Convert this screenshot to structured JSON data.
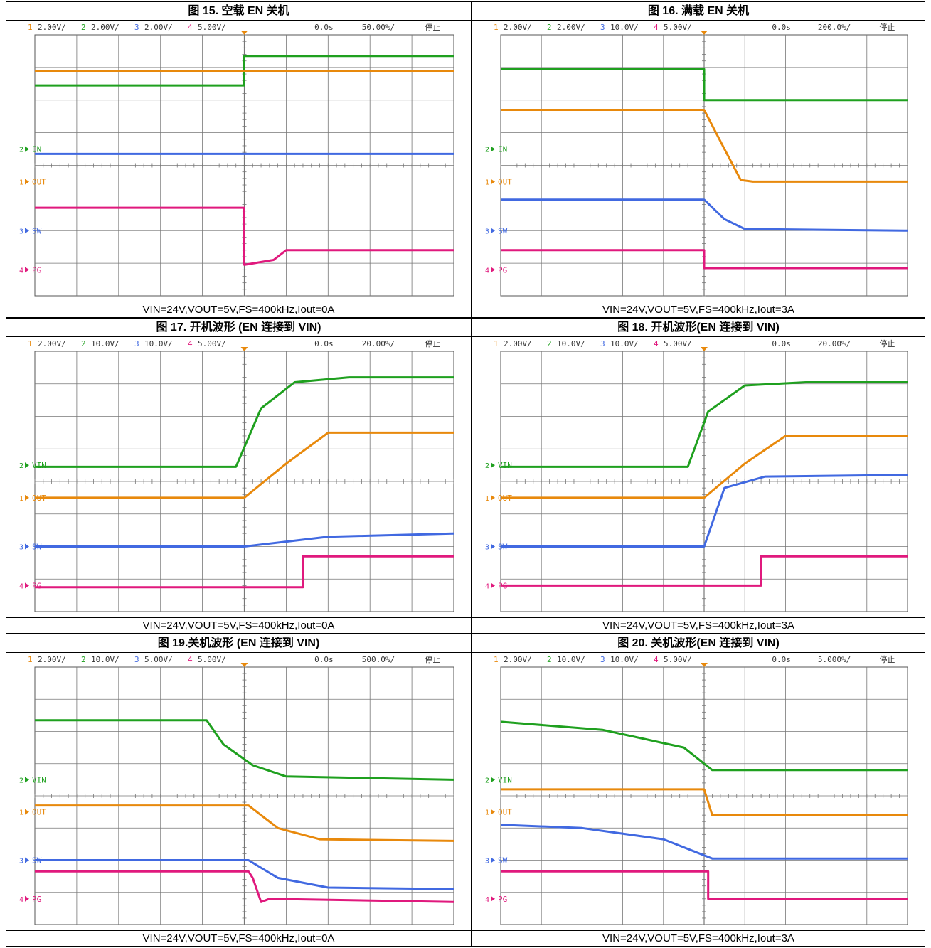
{
  "colors": {
    "ch1": "#E8890C",
    "ch2": "#1FA01F",
    "ch3": "#4169E1",
    "ch4": "#E0197D",
    "sw_fill": "#14214A",
    "trigger": "#E8890C"
  },
  "panels": [
    {
      "title": "图 15. 空载 EN 关机",
      "caption": "VIN=24V,VOUT=5V,FS=400kHz,Iout=0A",
      "header": {
        "ch1": "2.00V/",
        "ch2": "2.00V/",
        "ch3": "2.00V/",
        "ch4": "5.00V/",
        "delay": "0.0s",
        "timebase": "50.00%/",
        "status": "停止"
      },
      "labels": {
        "ch2": "EN",
        "ch1": "OUT",
        "ch3": "SW",
        "ch4": "PG"
      }
    },
    {
      "title": "图 16. 满载 EN 关机",
      "caption": "VIN=24V,VOUT=5V,FS=400kHz,Iout=3A",
      "header": {
        "ch1": "2.00V/",
        "ch2": "2.00V/",
        "ch3": "10.0V/",
        "ch4": "5.00V/",
        "delay": "0.0s",
        "timebase": "200.0%/",
        "status": "停止"
      },
      "labels": {
        "ch2": "EN",
        "ch1": "OUT",
        "ch3": "SW",
        "ch4": "PG"
      }
    },
    {
      "title": "图 17. 开机波形 (EN 连接到 VIN)",
      "caption": "VIN=24V,VOUT=5V,FS=400kHz,Iout=0A",
      "header": {
        "ch1": "2.00V/",
        "ch2": "10.0V/",
        "ch3": "10.0V/",
        "ch4": "5.00V/",
        "delay": "0.0s",
        "timebase": "20.00%/",
        "status": "停止"
      },
      "labels": {
        "ch2": "VIN",
        "ch1": "OUT",
        "ch3": "SW",
        "ch4": "PG"
      }
    },
    {
      "title": "图 18. 开机波形(EN 连接到 VIN)",
      "caption": "VIN=24V,VOUT=5V,FS=400kHz,Iout=3A",
      "header": {
        "ch1": "2.00V/",
        "ch2": "10.0V/",
        "ch3": "10.0V/",
        "ch4": "5.00V/",
        "delay": "0.0s",
        "timebase": "20.00%/",
        "status": "停止"
      },
      "labels": {
        "ch2": "VIN",
        "ch1": "OUT",
        "ch3": "SW",
        "ch4": "PG"
      }
    },
    {
      "title": "图 19.关机波形 (EN 连接到 VIN)",
      "caption": "VIN=24V,VOUT=5V,FS=400kHz,Iout=0A",
      "header": {
        "ch1": "2.00V/",
        "ch2": "10.0V/",
        "ch3": "5.00V/",
        "ch4": "5.00V/",
        "delay": "0.0s",
        "timebase": "500.0%/",
        "status": "停止"
      },
      "labels": {
        "ch2": "VIN",
        "ch1": "OUT",
        "ch3": "SW",
        "ch4": "PG"
      }
    },
    {
      "title": "图 20. 关机波形(EN 连接到 VIN)",
      "caption": "VIN=24V,VOUT=5V,FS=400kHz,Iout=3A",
      "header": {
        "ch1": "2.00V/",
        "ch2": "10.0V/",
        "ch3": "10.0V/",
        "ch4": "5.00V/",
        "delay": "0.0s",
        "timebase": "5.000%/",
        "status": "停止"
      },
      "labels": {
        "ch2": "VIN",
        "ch1": "OUT",
        "ch3": "SW",
        "ch4": "PG"
      }
    }
  ],
  "chart_data": [
    {
      "type": "line",
      "title": "图 15. 空载 EN 关机",
      "x_divisions": 10,
      "y_divisions": 8,
      "series": [
        {
          "name": "EN",
          "points": [
            [
              0,
              1.95
            ],
            [
              5,
              1.95
            ],
            [
              5,
              2.85
            ],
            [
              10,
              2.85
            ]
          ]
        },
        {
          "name": "OUT",
          "points": [
            [
              0,
              3.4
            ],
            [
              10,
              3.4
            ]
          ]
        },
        {
          "name": "SW",
          "points": [
            [
              0,
              2.35
            ],
            [
              10,
              2.35
            ]
          ]
        },
        {
          "name": "PG",
          "points": [
            [
              0,
              1.9
            ],
            [
              5,
              1.9
            ],
            [
              5,
              0.15
            ],
            [
              5.7,
              0.3
            ],
            [
              6,
              0.6
            ],
            [
              10,
              0.6
            ]
          ]
        }
      ]
    },
    {
      "type": "line",
      "title": "图 16. 满载 EN 关机",
      "x_divisions": 10,
      "y_divisions": 8,
      "series": [
        {
          "name": "EN",
          "points": [
            [
              0,
              2.45
            ],
            [
              5,
              2.45
            ],
            [
              5,
              1.5
            ],
            [
              10,
              1.5
            ]
          ]
        },
        {
          "name": "OUT",
          "points": [
            [
              0,
              2.2
            ],
            [
              5,
              2.2
            ],
            [
              5.5,
              1.0
            ],
            [
              5.9,
              0.05
            ],
            [
              6.2,
              0
            ],
            [
              10,
              0
            ]
          ]
        },
        {
          "name": "SW",
          "points": [
            [
              0,
              0.95
            ],
            [
              5,
              0.95
            ],
            [
              5.5,
              0.35
            ],
            [
              6,
              0.05
            ],
            [
              10,
              0
            ]
          ]
        },
        {
          "name": "PG",
          "points": [
            [
              0,
              0.6
            ],
            [
              5,
              0.6
            ],
            [
              5,
              0.05
            ],
            [
              10,
              0.05
            ]
          ]
        }
      ]
    },
    {
      "type": "line",
      "title": "图 17. 开机波形 (EN 连接到 VIN)",
      "x_divisions": 10,
      "y_divisions": 8,
      "series": [
        {
          "name": "VIN",
          "points": [
            [
              0,
              -0.05
            ],
            [
              4.8,
              -0.05
            ],
            [
              5.4,
              1.75
            ],
            [
              6.2,
              2.55
            ],
            [
              7.5,
              2.7
            ],
            [
              10,
              2.7
            ]
          ]
        },
        {
          "name": "OUT",
          "points": [
            [
              0,
              0
            ],
            [
              5,
              0
            ],
            [
              6,
              1.05
            ],
            [
              7,
              2.0
            ],
            [
              10,
              2.0
            ]
          ]
        },
        {
          "name": "SW",
          "points": [
            [
              0,
              0
            ],
            [
              5,
              0
            ],
            [
              7,
              0.3
            ],
            [
              10,
              0.4
            ]
          ]
        },
        {
          "name": "PG",
          "points": [
            [
              0,
              -0.05
            ],
            [
              6.4,
              -0.05
            ],
            [
              6.4,
              0.9
            ],
            [
              10,
              0.9
            ]
          ]
        }
      ]
    },
    {
      "type": "line",
      "title": "图 18. 开机波形(EN 连接到 VIN)",
      "x_divisions": 10,
      "y_divisions": 8,
      "series": [
        {
          "name": "VIN",
          "points": [
            [
              0,
              -0.05
            ],
            [
              4.6,
              -0.05
            ],
            [
              5.1,
              1.65
            ],
            [
              6,
              2.45
            ],
            [
              7.5,
              2.55
            ],
            [
              10,
              2.55
            ]
          ]
        },
        {
          "name": "OUT",
          "points": [
            [
              0,
              0
            ],
            [
              5,
              0
            ],
            [
              6,
              1.05
            ],
            [
              7,
              1.9
            ],
            [
              10,
              1.9
            ]
          ]
        },
        {
          "name": "SW",
          "points": [
            [
              0,
              0
            ],
            [
              5,
              0
            ],
            [
              5.5,
              1.8
            ],
            [
              6.5,
              2.15
            ],
            [
              10,
              2.2
            ]
          ]
        },
        {
          "name": "PG",
          "points": [
            [
              0,
              0
            ],
            [
              6.4,
              0
            ],
            [
              6.4,
              0.9
            ],
            [
              10,
              0.9
            ]
          ]
        }
      ]
    },
    {
      "type": "line",
      "title": "图 19.关机波形 (EN 连接到 VIN)",
      "x_divisions": 10,
      "y_divisions": 8,
      "series": [
        {
          "name": "VIN",
          "points": [
            [
              0,
              1.85
            ],
            [
              4.1,
              1.85
            ],
            [
              4.5,
              1.1
            ],
            [
              5.2,
              0.45
            ],
            [
              6,
              0.1
            ],
            [
              10,
              0
            ]
          ]
        },
        {
          "name": "OUT",
          "points": [
            [
              0,
              0.2
            ],
            [
              5.1,
              0.2
            ],
            [
              5.8,
              -0.5
            ],
            [
              6.8,
              -0.85
            ],
            [
              10,
              -0.9
            ]
          ]
        },
        {
          "name": "SW",
          "points": [
            [
              0,
              0
            ],
            [
              5.1,
              0
            ],
            [
              5.8,
              -0.55
            ],
            [
              7,
              -0.85
            ],
            [
              10,
              -0.9
            ]
          ]
        },
        {
          "name": "PG",
          "points": [
            [
              0,
              0.85
            ],
            [
              5.1,
              0.85
            ],
            [
              5.2,
              0.65
            ],
            [
              5.4,
              -0.1
            ],
            [
              5.6,
              0
            ],
            [
              10,
              -0.1
            ]
          ]
        }
      ]
    },
    {
      "type": "line",
      "title": "图 20. 关机波形(EN 连接到 VIN)",
      "x_divisions": 10,
      "y_divisions": 8,
      "series": [
        {
          "name": "VIN",
          "points": [
            [
              0,
              1.8
            ],
            [
              2.5,
              1.55
            ],
            [
              4.5,
              1.0
            ],
            [
              5.2,
              0.3
            ],
            [
              10,
              0.3
            ]
          ]
        },
        {
          "name": "OUT",
          "points": [
            [
              0,
              0.7
            ],
            [
              5,
              0.7
            ],
            [
              5.2,
              -0.1
            ],
            [
              10,
              -0.1
            ]
          ]
        },
        {
          "name": "SW",
          "points": [
            [
              0,
              1.1
            ],
            [
              2,
              1.0
            ],
            [
              4,
              0.65
            ],
            [
              5.2,
              0.05
            ],
            [
              10,
              0.05
            ]
          ]
        },
        {
          "name": "PG",
          "points": [
            [
              0,
              0.85
            ],
            [
              5.1,
              0.85
            ],
            [
              5.1,
              0
            ],
            [
              10,
              0
            ]
          ]
        }
      ]
    }
  ]
}
